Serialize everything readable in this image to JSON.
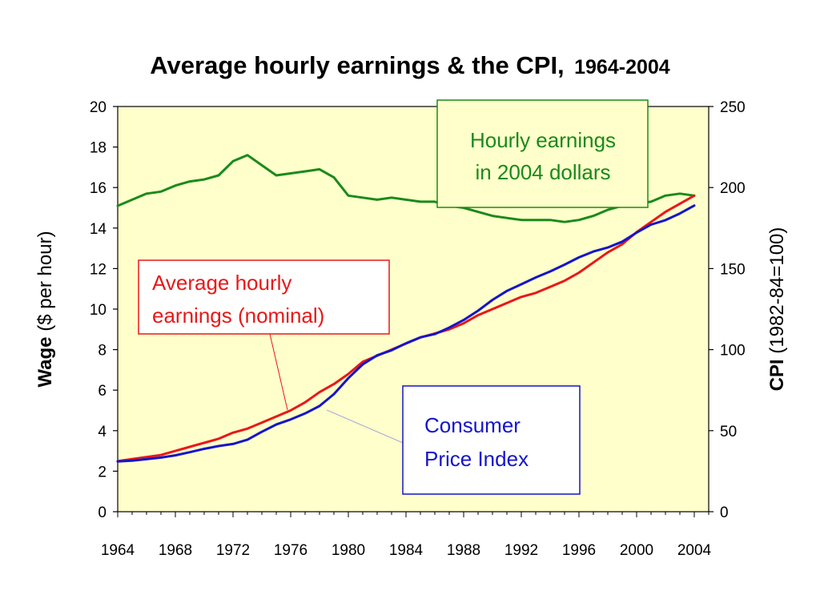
{
  "chart_data": {
    "type": "line",
    "title": "Average hourly earnings & the CPI,",
    "title_years": "1964-2004",
    "x_ticks": [
      "1964",
      "1968",
      "1972",
      "1976",
      "1980",
      "1984",
      "1988",
      "1992",
      "1996",
      "2000",
      "2004"
    ],
    "xlim": [
      1964,
      2005
    ],
    "y_left": {
      "label_bold": "Wage",
      "label_rest": " ($ per hour)",
      "ticks": [
        "0",
        "2",
        "4",
        "6",
        "8",
        "10",
        "12",
        "14",
        "16",
        "18",
        "20"
      ],
      "ylim": [
        0,
        20
      ]
    },
    "y_right": {
      "label_bold": "CPI",
      "label_rest": " (1982-84=100)",
      "ticks": [
        "0",
        "50",
        "100",
        "150",
        "200",
        "250"
      ],
      "ylim": [
        0,
        250
      ]
    },
    "plot_background": "#ffffcc",
    "series": [
      {
        "key": "real",
        "color": "#1a8a1a",
        "axis": "left",
        "annotation": [
          "Hourly earnings",
          "in 2004 dollars"
        ],
        "points": [
          [
            1964,
            15.1
          ],
          [
            1965,
            15.4
          ],
          [
            1966,
            15.7
          ],
          [
            1967,
            15.8
          ],
          [
            1968,
            16.1
          ],
          [
            1969,
            16.3
          ],
          [
            1970,
            16.4
          ],
          [
            1971,
            16.6
          ],
          [
            1972,
            17.3
          ],
          [
            1973,
            17.6
          ],
          [
            1974,
            17.1
          ],
          [
            1975,
            16.6
          ],
          [
            1976,
            16.7
          ],
          [
            1977,
            16.8
          ],
          [
            1978,
            16.9
          ],
          [
            1979,
            16.5
          ],
          [
            1980,
            15.6
          ],
          [
            1981,
            15.5
          ],
          [
            1982,
            15.4
          ],
          [
            1983,
            15.5
          ],
          [
            1984,
            15.4
          ],
          [
            1985,
            15.3
          ],
          [
            1986,
            15.3
          ],
          [
            1987,
            15.1
          ],
          [
            1988,
            15.0
          ],
          [
            1989,
            14.8
          ],
          [
            1990,
            14.6
          ],
          [
            1991,
            14.5
          ],
          [
            1992,
            14.4
          ],
          [
            1993,
            14.4
          ],
          [
            1994,
            14.4
          ],
          [
            1995,
            14.3
          ],
          [
            1996,
            14.4
          ],
          [
            1997,
            14.6
          ],
          [
            1998,
            14.9
          ],
          [
            1999,
            15.1
          ],
          [
            2000,
            15.2
          ],
          [
            2001,
            15.3
          ],
          [
            2002,
            15.6
          ],
          [
            2003,
            15.7
          ],
          [
            2004,
            15.6
          ]
        ]
      },
      {
        "key": "nominal",
        "color": "#e81818",
        "axis": "left",
        "annotation": [
          "Average hourly",
          "earnings (nominal)"
        ],
        "points": [
          [
            1964,
            2.5
          ],
          [
            1965,
            2.6
          ],
          [
            1966,
            2.7
          ],
          [
            1967,
            2.8
          ],
          [
            1968,
            3.0
          ],
          [
            1969,
            3.2
          ],
          [
            1970,
            3.4
          ],
          [
            1971,
            3.6
          ],
          [
            1972,
            3.9
          ],
          [
            1973,
            4.1
          ],
          [
            1974,
            4.4
          ],
          [
            1975,
            4.7
          ],
          [
            1976,
            5.0
          ],
          [
            1977,
            5.4
          ],
          [
            1978,
            5.9
          ],
          [
            1979,
            6.3
          ],
          [
            1980,
            6.8
          ],
          [
            1981,
            7.4
          ],
          [
            1982,
            7.7
          ],
          [
            1983,
            8.0
          ],
          [
            1984,
            8.3
          ],
          [
            1985,
            8.6
          ],
          [
            1986,
            8.8
          ],
          [
            1987,
            9.0
          ],
          [
            1988,
            9.3
          ],
          [
            1989,
            9.7
          ],
          [
            1990,
            10.0
          ],
          [
            1991,
            10.3
          ],
          [
            1992,
            10.6
          ],
          [
            1993,
            10.8
          ],
          [
            1994,
            11.1
          ],
          [
            1995,
            11.4
          ],
          [
            1996,
            11.8
          ],
          [
            1997,
            12.3
          ],
          [
            1998,
            12.8
          ],
          [
            1999,
            13.2
          ],
          [
            2000,
            13.8
          ],
          [
            2001,
            14.3
          ],
          [
            2002,
            14.8
          ],
          [
            2003,
            15.2
          ],
          [
            2004,
            15.6
          ]
        ]
      },
      {
        "key": "cpi",
        "color": "#1414cc",
        "axis": "right",
        "annotation": [
          "Consumer",
          "Price Index"
        ],
        "points": [
          [
            1964,
            31.0
          ],
          [
            1965,
            31.5
          ],
          [
            1966,
            32.4
          ],
          [
            1967,
            33.4
          ],
          [
            1968,
            34.8
          ],
          [
            1969,
            36.7
          ],
          [
            1970,
            38.8
          ],
          [
            1971,
            40.5
          ],
          [
            1972,
            41.8
          ],
          [
            1973,
            44.4
          ],
          [
            1974,
            49.3
          ],
          [
            1975,
            53.8
          ],
          [
            1976,
            56.9
          ],
          [
            1977,
            60.6
          ],
          [
            1978,
            65.2
          ],
          [
            1979,
            72.6
          ],
          [
            1980,
            82.4
          ],
          [
            1981,
            90.9
          ],
          [
            1982,
            96.5
          ],
          [
            1983,
            99.6
          ],
          [
            1984,
            103.9
          ],
          [
            1985,
            107.6
          ],
          [
            1986,
            109.6
          ],
          [
            1987,
            113.6
          ],
          [
            1988,
            118.3
          ],
          [
            1989,
            124.0
          ],
          [
            1990,
            130.7
          ],
          [
            1991,
            136.2
          ],
          [
            1992,
            140.3
          ],
          [
            1993,
            144.5
          ],
          [
            1994,
            148.2
          ],
          [
            1995,
            152.4
          ],
          [
            1996,
            156.9
          ],
          [
            1997,
            160.5
          ],
          [
            1998,
            163.0
          ],
          [
            1999,
            166.6
          ],
          [
            2000,
            172.2
          ],
          [
            2001,
            177.1
          ],
          [
            2002,
            179.9
          ],
          [
            2003,
            184.0
          ],
          [
            2004,
            188.9
          ]
        ]
      }
    ]
  }
}
